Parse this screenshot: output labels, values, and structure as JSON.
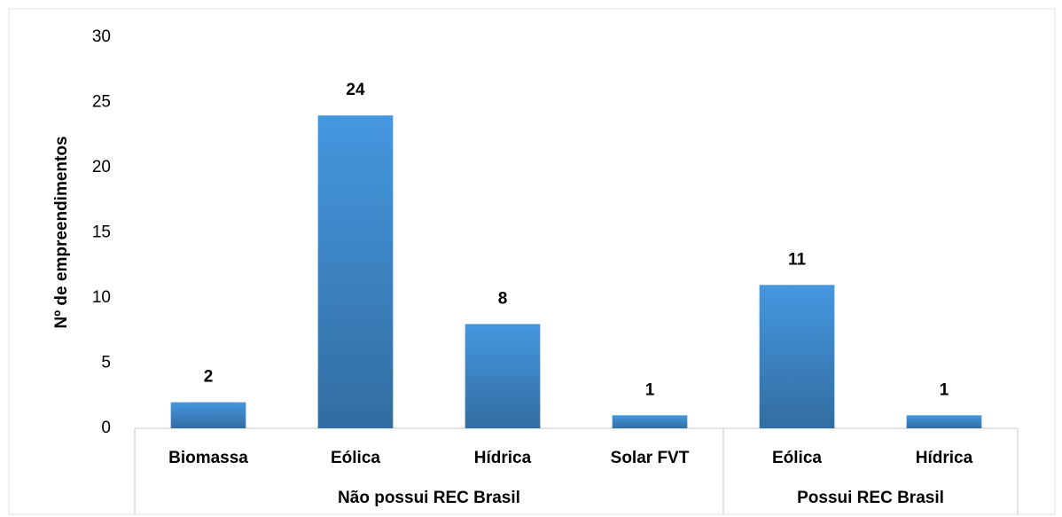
{
  "chart_data": {
    "type": "bar",
    "y_axis_label": "Nº de empreendimentos",
    "groups": [
      {
        "name": "Não possui REC Brasil",
        "categories": [
          "Biomassa",
          "Eólica",
          "Hídrica",
          "Solar FVT"
        ],
        "values": [
          2,
          24,
          8,
          1
        ]
      },
      {
        "name": "Possui REC Brasil",
        "categories": [
          "Eólica",
          "Hídrica"
        ],
        "values": [
          11,
          1
        ]
      }
    ],
    "color": "#4597e0",
    "ylim": [
      0,
      30
    ],
    "yticks": [
      0,
      5,
      10,
      15,
      20,
      25,
      30
    ],
    "grid": false
  }
}
